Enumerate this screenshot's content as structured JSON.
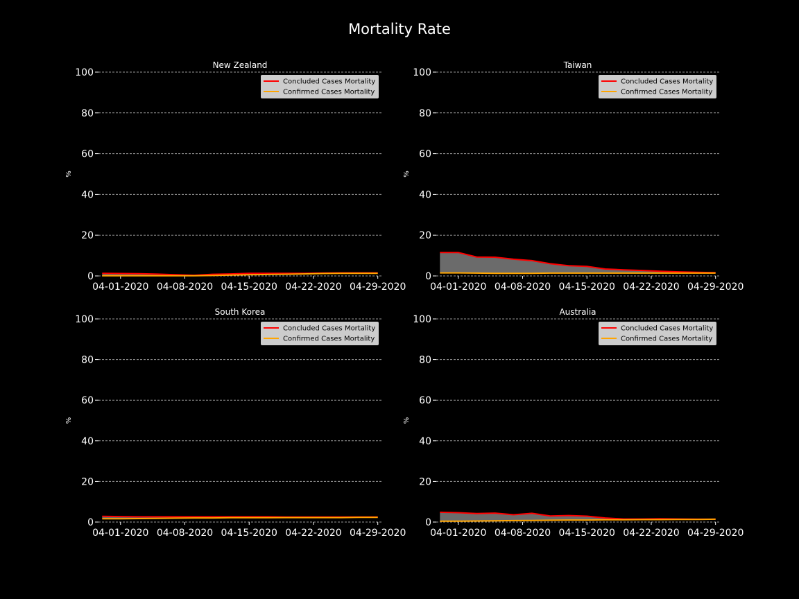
{
  "figure": {
    "title": "Mortality Rate",
    "background": "#000000",
    "fill_color": "#6b6b6b",
    "legend_bg": "#cccccc"
  },
  "chart_data": [
    {
      "type": "area",
      "title": "New Zealand",
      "ylabel": "%",
      "xlabel": "",
      "x_tick_labels": [
        "04-01-2020",
        "04-08-2020",
        "04-15-2020",
        "04-22-2020",
        "04-29-2020"
      ],
      "y_ticks": [
        0,
        20,
        40,
        60,
        80,
        100
      ],
      "ylim": [
        0,
        100
      ],
      "grid": "y-dashed",
      "legend_position": "top-right",
      "x": [
        "03-30-2020",
        "04-01-2020",
        "04-03-2020",
        "04-05-2020",
        "04-07-2020",
        "04-09-2020",
        "04-11-2020",
        "04-13-2020",
        "04-15-2020",
        "04-17-2020",
        "04-19-2020",
        "04-21-2020",
        "04-23-2020",
        "04-25-2020",
        "04-27-2020",
        "04-29-2020"
      ],
      "series": [
        {
          "name": "Concluded Cases Mortality",
          "color": "#ff0000",
          "values": [
            1.3,
            1.2,
            1.1,
            0.9,
            0.6,
            0.3,
            0.8,
            1.0,
            1.3,
            1.3,
            1.3,
            1.3,
            1.4,
            1.5,
            1.5,
            1.5
          ]
        },
        {
          "name": "Confirmed Cases Mortality",
          "color": "#ffa500",
          "values": [
            0.1,
            0.1,
            0.1,
            0.1,
            0.1,
            0.1,
            0.2,
            0.4,
            0.6,
            0.7,
            0.8,
            1.0,
            1.2,
            1.3,
            1.3,
            1.3
          ]
        }
      ]
    },
    {
      "type": "area",
      "title": "Taiwan",
      "ylabel": "%",
      "xlabel": "",
      "x_tick_labels": [
        "04-01-2020",
        "04-08-2020",
        "04-15-2020",
        "04-22-2020",
        "04-29-2020"
      ],
      "y_ticks": [
        0,
        20,
        40,
        60,
        80,
        100
      ],
      "ylim": [
        0,
        100
      ],
      "grid": "y-dashed",
      "legend_position": "top-right",
      "x": [
        "03-30-2020",
        "04-01-2020",
        "04-03-2020",
        "04-05-2020",
        "04-07-2020",
        "04-09-2020",
        "04-11-2020",
        "04-13-2020",
        "04-15-2020",
        "04-17-2020",
        "04-19-2020",
        "04-21-2020",
        "04-23-2020",
        "04-25-2020",
        "04-27-2020",
        "04-29-2020"
      ],
      "series": [
        {
          "name": "Concluded Cases Mortality",
          "color": "#ff0000",
          "values": [
            11.5,
            11.5,
            9.3,
            9.2,
            8.2,
            7.5,
            6.0,
            5.0,
            4.7,
            3.4,
            3.0,
            2.7,
            2.3,
            2.0,
            1.8,
            1.6
          ]
        },
        {
          "name": "Confirmed Cases Mortality",
          "color": "#ffa500",
          "values": [
            1.5,
            1.5,
            1.4,
            1.3,
            1.3,
            1.3,
            1.4,
            1.4,
            1.4,
            1.4,
            1.4,
            1.4,
            1.4,
            1.4,
            1.4,
            1.4
          ]
        }
      ]
    },
    {
      "type": "area",
      "title": "South Korea",
      "ylabel": "%",
      "xlabel": "",
      "x_tick_labels": [
        "04-01-2020",
        "04-08-2020",
        "04-15-2020",
        "04-22-2020",
        "04-29-2020"
      ],
      "y_ticks": [
        0,
        20,
        40,
        60,
        80,
        100
      ],
      "ylim": [
        0,
        100
      ],
      "grid": "y-dashed",
      "legend_position": "top-right",
      "x": [
        "03-30-2020",
        "04-01-2020",
        "04-03-2020",
        "04-05-2020",
        "04-07-2020",
        "04-09-2020",
        "04-11-2020",
        "04-13-2020",
        "04-15-2020",
        "04-17-2020",
        "04-19-2020",
        "04-21-2020",
        "04-23-2020",
        "04-25-2020",
        "04-27-2020",
        "04-29-2020"
      ],
      "series": [
        {
          "name": "Concluded Cases Mortality",
          "color": "#ff0000",
          "values": [
            2.8,
            2.7,
            2.6,
            2.6,
            2.6,
            2.6,
            2.6,
            2.6,
            2.6,
            2.6,
            2.5,
            2.5,
            2.5,
            2.5,
            2.5,
            2.5
          ]
        },
        {
          "name": "Confirmed Cases Mortality",
          "color": "#ffa500",
          "values": [
            1.6,
            1.6,
            1.7,
            1.8,
            1.9,
            2.0,
            2.0,
            2.1,
            2.1,
            2.1,
            2.2,
            2.2,
            2.2,
            2.2,
            2.3,
            2.3
          ]
        }
      ]
    },
    {
      "type": "area",
      "title": "Australia",
      "ylabel": "%",
      "xlabel": "",
      "x_tick_labels": [
        "04-01-2020",
        "04-08-2020",
        "04-15-2020",
        "04-22-2020",
        "04-29-2020"
      ],
      "y_ticks": [
        0,
        20,
        40,
        60,
        80,
        100
      ],
      "ylim": [
        0,
        100
      ],
      "grid": "y-dashed",
      "legend_position": "top-right",
      "x": [
        "03-30-2020",
        "04-01-2020",
        "04-03-2020",
        "04-05-2020",
        "04-07-2020",
        "04-09-2020",
        "04-11-2020",
        "04-13-2020",
        "04-15-2020",
        "04-17-2020",
        "04-19-2020",
        "04-21-2020",
        "04-23-2020",
        "04-25-2020",
        "04-27-2020",
        "04-29-2020"
      ],
      "series": [
        {
          "name": "Concluded Cases Mortality",
          "color": "#ff0000",
          "values": [
            4.8,
            4.6,
            4.2,
            4.4,
            3.6,
            4.3,
            3.0,
            3.2,
            2.9,
            2.0,
            1.5,
            1.5,
            1.6,
            1.5,
            1.4,
            1.4
          ]
        },
        {
          "name": "Confirmed Cases Mortality",
          "color": "#ffa500",
          "values": [
            0.4,
            0.4,
            0.5,
            0.6,
            0.7,
            0.8,
            0.9,
            1.0,
            1.0,
            1.1,
            1.1,
            1.2,
            1.2,
            1.3,
            1.3,
            1.4
          ]
        }
      ]
    }
  ]
}
